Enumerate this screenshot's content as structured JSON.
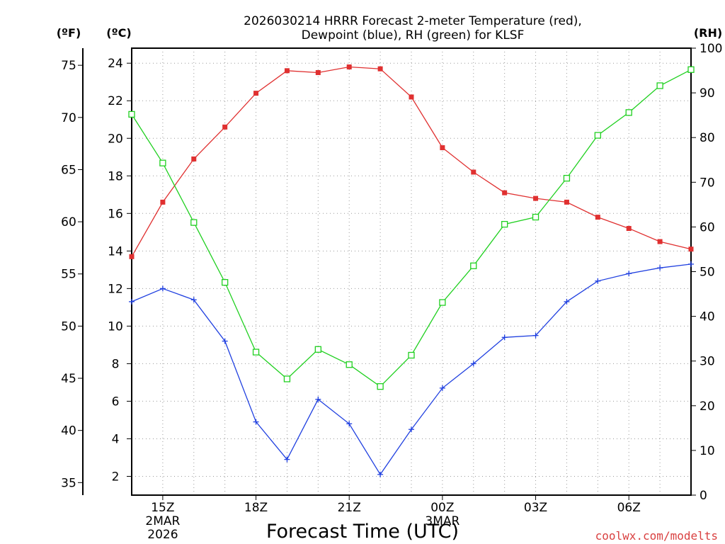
{
  "chart_data": {
    "type": "line",
    "title_line1": "2026030214 HRRR Forecast 2-meter Temperature (red),",
    "title_line2": "Dewpoint (blue), RH (green) for KLSF",
    "xlabel": "Forecast Time (UTC)",
    "credit": "coolwx.com/modelts",
    "units": {
      "f": "(ºF)",
      "c": "(ºC)",
      "rh": "(RH)"
    },
    "colors": {
      "temperature": "#e03030",
      "dewpoint": "#2040e0",
      "rh": "#20d020"
    },
    "hours": [
      14,
      15,
      16,
      17,
      18,
      19,
      20,
      21,
      22,
      23,
      24,
      25,
      26,
      27,
      28,
      29,
      30,
      31,
      32
    ],
    "x_range": [
      14,
      32
    ],
    "x_ticks": [
      {
        "x": 15,
        "label": "15Z",
        "sub1": "2MAR",
        "sub2": "2026"
      },
      {
        "x": 18,
        "label": "18Z",
        "sub1": "",
        "sub2": ""
      },
      {
        "x": 21,
        "label": "21Z",
        "sub1": "",
        "sub2": ""
      },
      {
        "x": 24,
        "label": "00Z",
        "sub1": "3MAR",
        "sub2": ""
      },
      {
        "x": 27,
        "label": "03Z",
        "sub1": "",
        "sub2": ""
      },
      {
        "x": 30,
        "label": "06Z",
        "sub1": "",
        "sub2": ""
      }
    ],
    "c_range": [
      1.0,
      24.8
    ],
    "c_ticks": [
      2,
      4,
      6,
      8,
      10,
      12,
      14,
      16,
      18,
      20,
      22,
      24
    ],
    "f_ticks": [
      35,
      40,
      45,
      50,
      55,
      60,
      65,
      70,
      75
    ],
    "rh_range": [
      0,
      100
    ],
    "rh_ticks": [
      0,
      10,
      20,
      30,
      40,
      50,
      60,
      70,
      80,
      90,
      100
    ],
    "series": [
      {
        "name": "Temperature",
        "unit": "C",
        "marker": "filled-square",
        "values": [
          13.7,
          16.6,
          18.9,
          20.6,
          22.4,
          23.6,
          23.5,
          23.8,
          23.7,
          22.2,
          19.5,
          18.2,
          17.1,
          16.8,
          16.6,
          15.8,
          15.2,
          14.5,
          14.1
        ]
      },
      {
        "name": "Dewpoint",
        "unit": "C",
        "marker": "plus",
        "values": [
          11.3,
          12.0,
          11.4,
          9.2,
          4.9,
          2.9,
          6.1,
          4.8,
          2.1,
          4.5,
          6.7,
          8.0,
          9.4,
          9.5,
          11.3,
          12.4,
          12.8,
          13.1,
          13.3
        ]
      },
      {
        "name": "RH",
        "unit": "%",
        "marker": "open-square",
        "values": [
          85.2,
          74.3,
          61.0,
          47.6,
          32.0,
          26.0,
          32.6,
          29.2,
          24.3,
          31.3,
          43.1,
          51.3,
          60.6,
          62.2,
          70.9,
          80.5,
          85.6,
          91.6,
          95.2
        ]
      }
    ]
  }
}
